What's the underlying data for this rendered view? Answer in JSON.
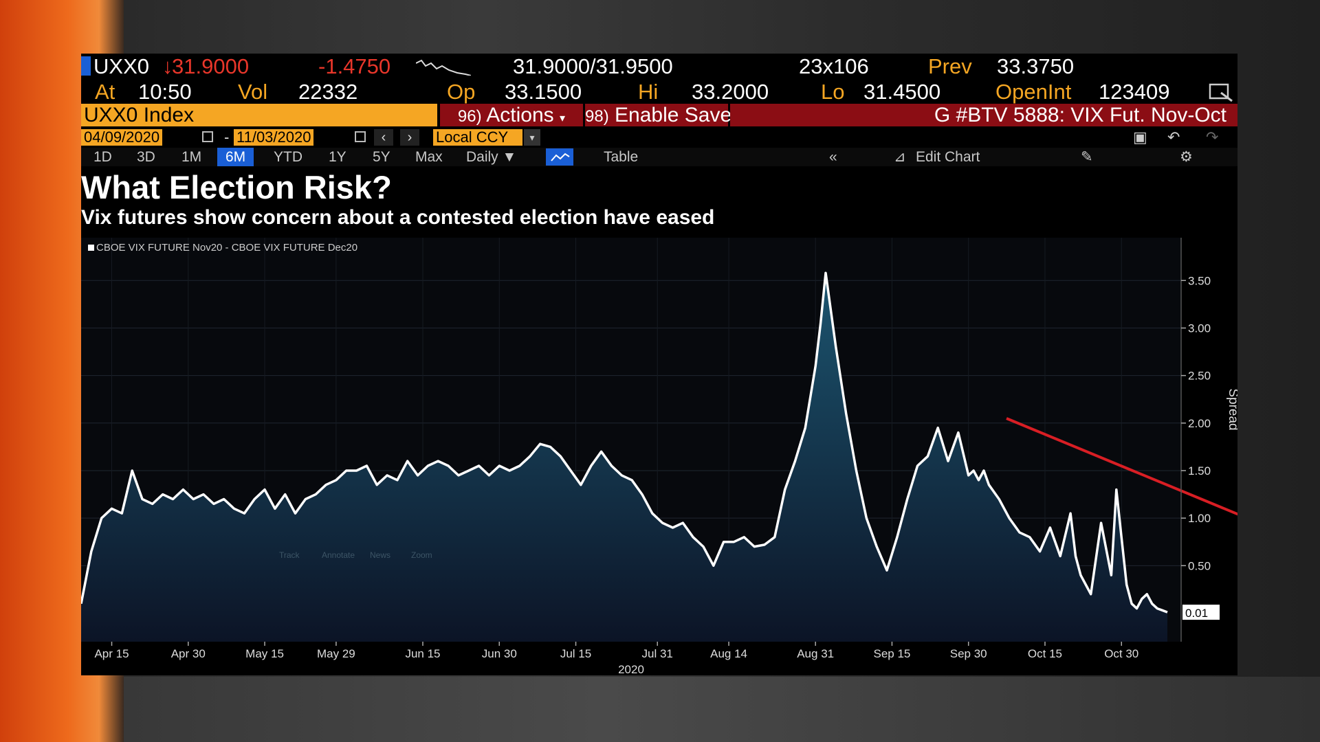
{
  "ticker_bar": {
    "ticker": "UXX0",
    "last_price": "31.9000",
    "change": "-1.4750",
    "bid_ask": "31.9000/31.9500",
    "size": "23x106",
    "prev_label": "Prev",
    "prev_value": "33.3750",
    "at_label": "At",
    "time": "10:50",
    "vol_label": "Vol",
    "vol_value": "22332",
    "op_label": "Op",
    "op_value": "33.1500",
    "hi_label": "Hi",
    "hi_value": "33.2000",
    "lo_label": "Lo",
    "lo_value": "31.4500",
    "openint_label": "OpenInt",
    "openint_value": "123409"
  },
  "command_bar": {
    "security": "UXX0 Index",
    "actions_num": "96)",
    "actions_label": "Actions",
    "save_num": "98)",
    "save_label": "Enable Save",
    "page_title": "G #BTV 5888: VIX Fut. Nov-Oct"
  },
  "date_bar": {
    "start_date": "04/09/2020",
    "sep": "-",
    "end_date": "11/03/2020",
    "currency": "Local CCY"
  },
  "range_bar": {
    "ranges": [
      "1D",
      "3D",
      "1M",
      "6M",
      "YTD",
      "1Y",
      "5Y",
      "Max"
    ],
    "selected": "6M",
    "frequency": "Daily",
    "table_label": "Table",
    "edit_chart_label": "Edit Chart"
  },
  "headline": "What Election Risk?",
  "subheadline": "Vix futures show concern about a contested election have eased",
  "overlay_hint": [
    "Track",
    "Annotate",
    "News",
    "Zoom"
  ],
  "chart_data": {
    "type": "area",
    "legend": "CBOE VIX FUTURE   Nov20 - CBOE VIX FUTURE   Dec20",
    "ylabel": "Spread",
    "xlabel": "2020",
    "ylim": [
      -0.3,
      3.95
    ],
    "yticks": [
      "3.50",
      "3.00",
      "2.50",
      "2.00",
      "1.50",
      "1.00",
      "0.50"
    ],
    "xticks": [
      "Apr 15",
      "Apr 30",
      "May 15",
      "May 29",
      "Jun 15",
      "Jun 30",
      "Jul 15",
      "Jul 31",
      "Aug 14",
      "Aug 31",
      "Sep 15",
      "Sep 30",
      "Oct 15",
      "Oct 30"
    ],
    "xtick_days": [
      6,
      21,
      36,
      50,
      67,
      82,
      97,
      113,
      127,
      144,
      159,
      174,
      189,
      204
    ],
    "last_value_label": "0.01",
    "colors": {
      "line": "#ffffff",
      "area_top": "#1c5570",
      "area_bottom": "#0c1426",
      "trend_arrow": "#d81e24"
    },
    "series": [
      {
        "x_days": [
          0,
          2,
          4,
          6,
          8,
          10,
          12,
          14,
          16,
          18,
          20,
          22,
          24,
          26,
          28,
          30,
          32,
          34,
          36,
          38,
          40,
          42,
          44,
          46,
          48,
          50,
          52,
          54,
          56,
          58,
          60,
          62,
          64,
          66,
          68,
          70,
          72,
          74,
          76,
          78,
          80,
          82,
          84,
          86,
          88,
          90,
          92,
          94,
          96,
          98,
          100,
          102,
          104,
          106,
          108,
          110,
          112,
          114,
          116,
          118,
          120,
          122,
          124,
          126,
          128,
          130,
          132,
          134,
          136,
          138,
          140,
          142,
          144,
          145,
          146,
          148,
          150,
          152,
          154,
          156,
          158,
          160,
          162,
          164,
          166,
          168,
          170,
          172,
          174,
          175,
          176,
          177,
          178,
          180,
          182,
          184,
          186,
          188,
          190,
          192,
          194,
          195,
          196,
          197,
          198,
          200,
          202,
          203,
          204,
          205,
          206,
          207,
          208,
          209,
          210,
          211,
          212,
          213
        ],
        "values": [
          0.1,
          0.65,
          1.0,
          1.1,
          1.05,
          1.5,
          1.2,
          1.15,
          1.25,
          1.2,
          1.3,
          1.2,
          1.25,
          1.15,
          1.2,
          1.1,
          1.05,
          1.2,
          1.3,
          1.1,
          1.25,
          1.05,
          1.2,
          1.25,
          1.35,
          1.4,
          1.5,
          1.5,
          1.55,
          1.35,
          1.45,
          1.4,
          1.6,
          1.45,
          1.55,
          1.6,
          1.55,
          1.45,
          1.5,
          1.55,
          1.45,
          1.55,
          1.5,
          1.55,
          1.65,
          1.78,
          1.75,
          1.65,
          1.5,
          1.35,
          1.55,
          1.7,
          1.55,
          1.45,
          1.4,
          1.25,
          1.05,
          0.95,
          0.9,
          0.95,
          0.8,
          0.7,
          0.5,
          0.75,
          0.75,
          0.8,
          0.7,
          0.72,
          0.8,
          1.3,
          1.6,
          1.95,
          2.6,
          3.05,
          3.58,
          2.8,
          2.1,
          1.5,
          1.0,
          0.7,
          0.45,
          0.8,
          1.2,
          1.55,
          1.65,
          1.95,
          1.6,
          1.9,
          1.45,
          1.5,
          1.4,
          1.5,
          1.35,
          1.2,
          1.0,
          0.85,
          0.8,
          0.65,
          0.9,
          0.6,
          1.05,
          0.6,
          0.4,
          0.3,
          0.2,
          0.95,
          0.4,
          1.3,
          0.8,
          0.3,
          0.1,
          0.05,
          0.15,
          0.2,
          0.1,
          0.05,
          0.03,
          0.01
        ]
      }
    ]
  }
}
